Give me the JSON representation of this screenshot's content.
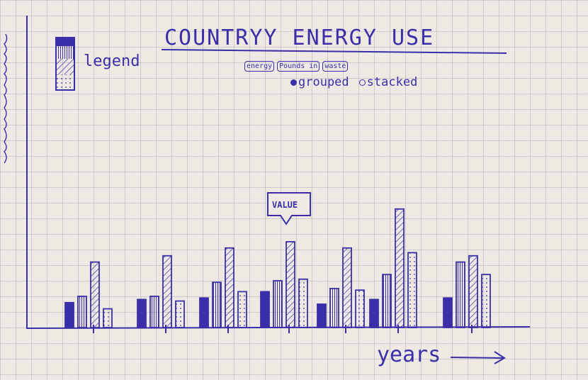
{
  "chart_data": {
    "type": "bar",
    "title": "COUNTRYY ENERGY USE",
    "xlabel": "years",
    "ylabel": "",
    "legend": {
      "label": "legend",
      "placement": "top-left"
    },
    "categories": [
      "",
      "",
      "",
      "",
      "",
      "",
      "",
      ""
    ],
    "series": [
      {
        "values": [
          1.6,
          1.8,
          1.9,
          2.3,
          1.5,
          1.8,
          1.9,
          1.9
        ]
      },
      {
        "values": [
          2.0,
          2.0,
          2.9,
          3.0,
          2.5,
          3.4,
          4.2,
          4.6
        ]
      },
      {
        "values": [
          4.2,
          4.6,
          5.1,
          5.5,
          5.1,
          7.6,
          4.6,
          6.8
        ]
      },
      {
        "values": [
          1.2,
          1.7,
          2.3,
          3.1,
          2.4,
          4.8,
          3.4,
          4.8
        ]
      }
    ],
    "annotations": [
      "VALUE"
    ],
    "colors": {
      "ink": "#3a2fa8",
      "paper": "#eeeae3"
    }
  },
  "controls": {
    "buttons": [
      "energy",
      "Pounds in",
      "waste"
    ],
    "radio_grouped": "grouped",
    "radio_stacked": "stacked"
  }
}
